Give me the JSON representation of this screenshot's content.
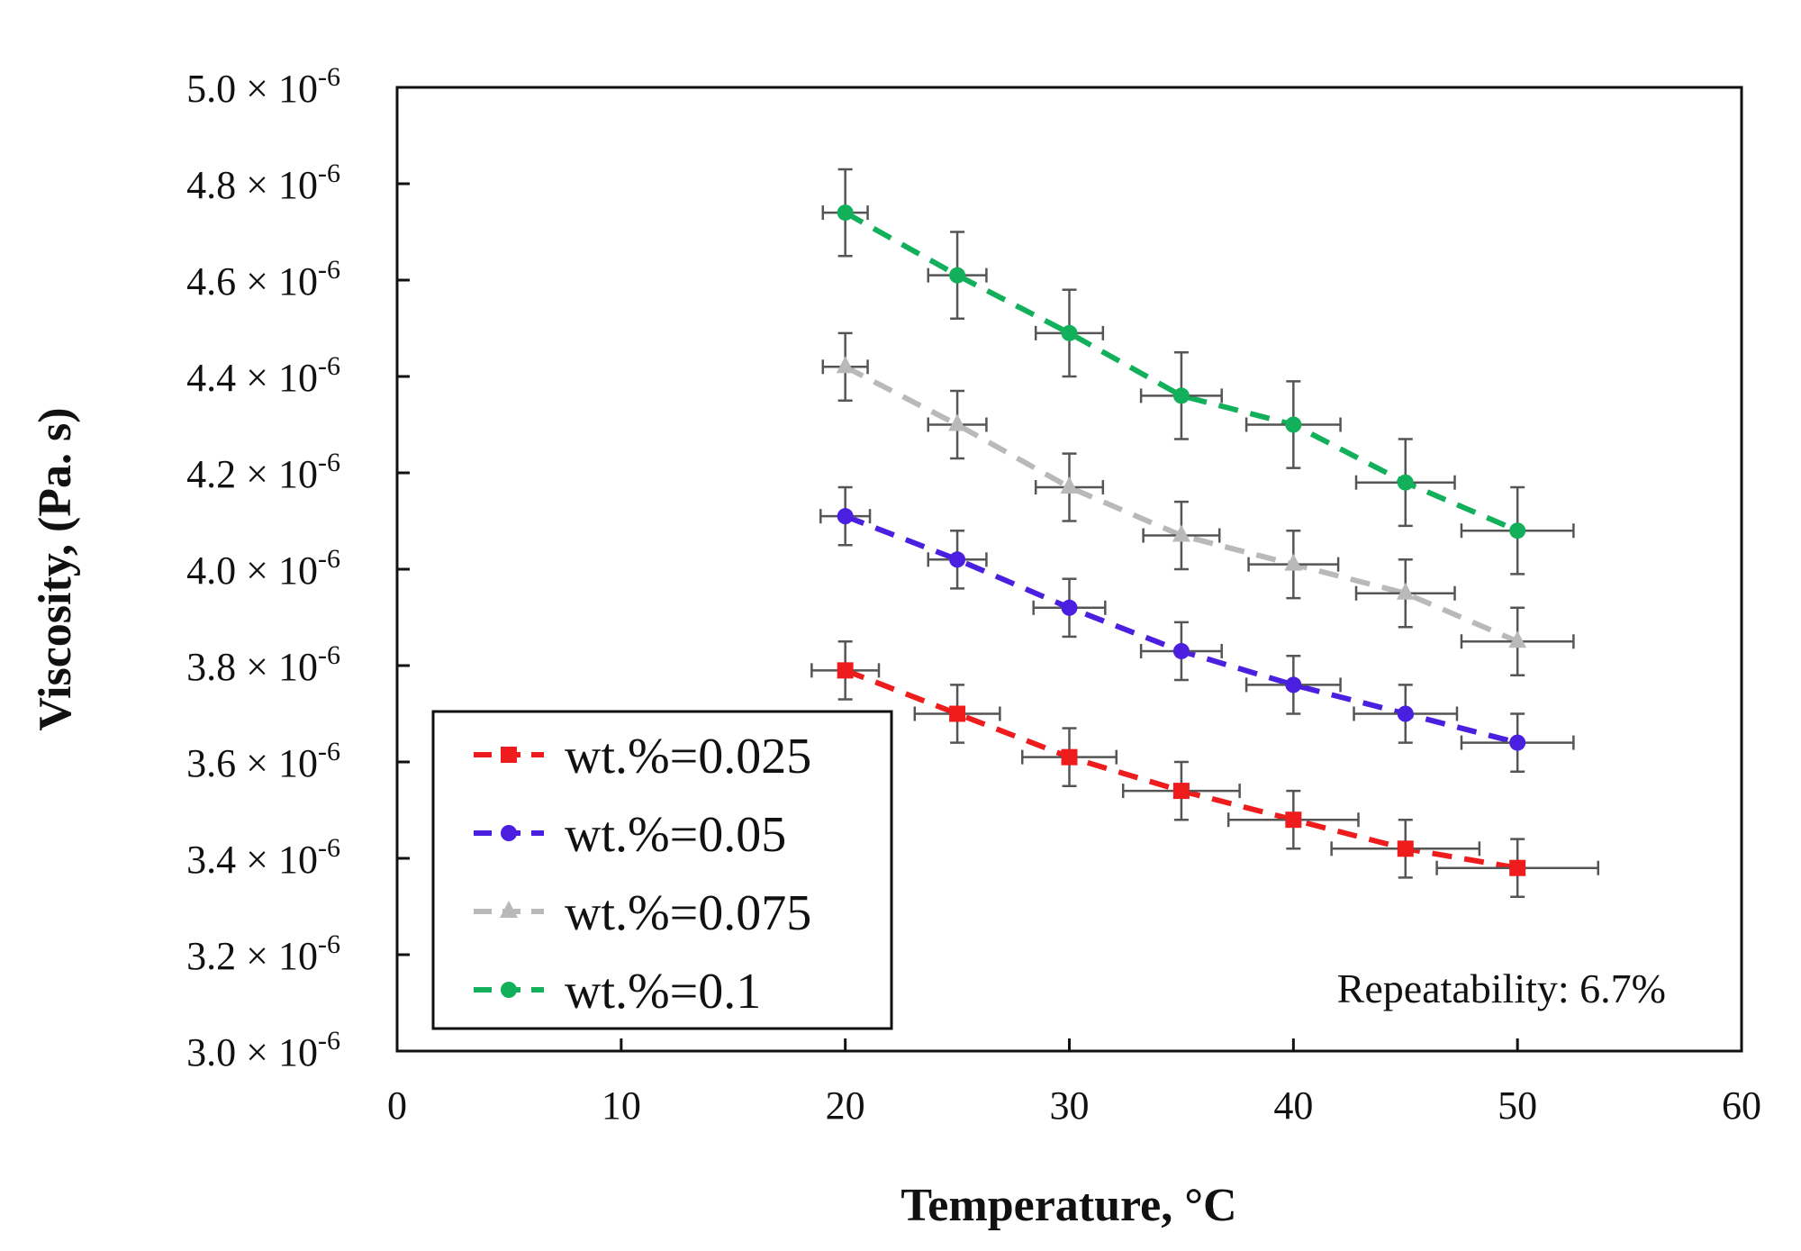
{
  "chart_data": {
    "type": "scatter",
    "title": "",
    "xlabel": "Temperature, °C",
    "ylabel": "Viscosity, (Pa. s)",
    "xlim": [
      0,
      60
    ],
    "ylim": [
      3e-06,
      5e-06
    ],
    "x_ticks": [
      "0",
      "10",
      "20",
      "30",
      "40",
      "50",
      "60"
    ],
    "y_ticks": [
      {
        "mant": "3.0",
        "exp": "-6"
      },
      {
        "mant": "3.2",
        "exp": "-6"
      },
      {
        "mant": "3.4",
        "exp": "-6"
      },
      {
        "mant": "3.6",
        "exp": "-6"
      },
      {
        "mant": "3.8",
        "exp": "-6"
      },
      {
        "mant": "4.0",
        "exp": "-6"
      },
      {
        "mant": "4.2",
        "exp": "-6"
      },
      {
        "mant": "4.4",
        "exp": "-6"
      },
      {
        "mant": "4.6",
        "exp": "-6"
      },
      {
        "mant": "4.8",
        "exp": "-6"
      },
      {
        "mant": "5.0",
        "exp": "-6"
      }
    ],
    "y_tick_times": "×",
    "y_tick_base": "10",
    "x": [
      20,
      25,
      30,
      35,
      40,
      45,
      50
    ],
    "series": [
      {
        "name": "wt.%=0.025",
        "color": "#ee1c1c",
        "marker": "square",
        "values": [
          3.79e-06,
          3.7e-06,
          3.61e-06,
          3.54e-06,
          3.48e-06,
          3.42e-06,
          3.38e-06
        ],
        "xerr": [
          1.5,
          1.9,
          2.1,
          2.6,
          2.9,
          3.3,
          3.6
        ],
        "yerr": [
          6e-08,
          6e-08,
          6e-08,
          6e-08,
          6e-08,
          6e-08,
          6e-08
        ]
      },
      {
        "name": "wt.%=0.05",
        "color": "#4b1fe0",
        "marker": "circle",
        "values": [
          4.11e-06,
          4.02e-06,
          3.92e-06,
          3.83e-06,
          3.76e-06,
          3.7e-06,
          3.64e-06
        ],
        "xerr": [
          1.1,
          1.3,
          1.6,
          1.8,
          2.1,
          2.3,
          2.5
        ],
        "yerr": [
          6e-08,
          6e-08,
          6e-08,
          6e-08,
          6e-08,
          6e-08,
          6e-08
        ]
      },
      {
        "name": "wt.%=0.075",
        "color": "#b9b9b9",
        "marker": "triangle",
        "values": [
          4.42e-06,
          4.3e-06,
          4.17e-06,
          4.07e-06,
          4.01e-06,
          3.95e-06,
          3.85e-06
        ],
        "xerr": [
          1.0,
          1.3,
          1.5,
          1.7,
          2.0,
          2.2,
          2.5
        ],
        "yerr": [
          7e-08,
          7e-08,
          7e-08,
          7e-08,
          7e-08,
          7e-08,
          7e-08
        ]
      },
      {
        "name": "wt.%=0.1",
        "color": "#12b05a",
        "marker": "circle",
        "values": [
          4.74e-06,
          4.61e-06,
          4.49e-06,
          4.36e-06,
          4.3e-06,
          4.18e-06,
          4.08e-06
        ],
        "xerr": [
          1.0,
          1.3,
          1.5,
          1.8,
          2.1,
          2.2,
          2.5
        ],
        "yerr": [
          9e-08,
          9e-08,
          9e-08,
          9e-08,
          9e-08,
          9e-08,
          9e-08
        ]
      }
    ],
    "legend_position": "bottom-left",
    "annotation": "Repeatability: 6.7%",
    "grid": false
  }
}
